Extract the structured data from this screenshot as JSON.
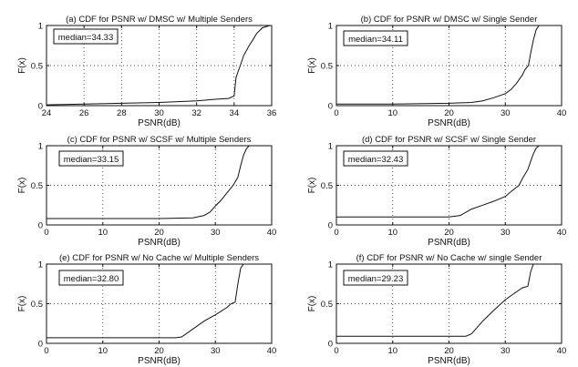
{
  "chart_data": [
    {
      "type": "line",
      "title": "(a) CDF for PSNR w/ DMSC w/ Multiple Senders",
      "xlabel": "PSNR(dB)",
      "ylabel": "F(x)",
      "xlim": [
        24,
        36
      ],
      "ylim": [
        0,
        1
      ],
      "xticks": [
        24,
        26,
        28,
        30,
        32,
        34,
        36
      ],
      "yticks": [
        0,
        0.5,
        1
      ],
      "xtick_labels": [
        "24",
        "26",
        "28",
        "30",
        "32",
        "34",
        "36"
      ],
      "ytick_labels": [
        "0",
        "0.5",
        "1"
      ],
      "grid": true,
      "annotation": "median=34.33",
      "series": [
        {
          "x": [
            24,
            26,
            28,
            30,
            31,
            32,
            33,
            33.7,
            34.0,
            34.1,
            34.2,
            34.33,
            34.5,
            34.8,
            35.0,
            35.2,
            35.5,
            35.9
          ],
          "y": [
            0.01,
            0.02,
            0.03,
            0.04,
            0.05,
            0.06,
            0.08,
            0.09,
            0.12,
            0.35,
            0.42,
            0.5,
            0.62,
            0.75,
            0.82,
            0.9,
            0.97,
            1.0
          ]
        }
      ]
    },
    {
      "type": "line",
      "title": "(b) CDF for PSNR w/ DMSC w/ Single Sender",
      "xlabel": "PSNR(dB)",
      "ylabel": "F(x)",
      "xlim": [
        0,
        40
      ],
      "ylim": [
        0,
        1
      ],
      "xticks": [
        0,
        10,
        20,
        30,
        40
      ],
      "yticks": [
        0,
        0.5,
        1
      ],
      "xtick_labels": [
        "0",
        "10",
        "20",
        "30",
        "40"
      ],
      "ytick_labels": [
        "0",
        "0.5",
        "1"
      ],
      "grid": true,
      "annotation": "median=34.11",
      "series": [
        {
          "x": [
            0,
            10,
            20,
            24,
            26,
            28,
            30,
            31,
            32,
            33,
            33.5,
            34.11,
            34.5,
            35,
            35.5,
            36
          ],
          "y": [
            0.02,
            0.02,
            0.03,
            0.04,
            0.06,
            0.1,
            0.15,
            0.2,
            0.28,
            0.38,
            0.45,
            0.5,
            0.65,
            0.82,
            0.95,
            1.0
          ]
        }
      ]
    },
    {
      "type": "line",
      "title": "(c) CDF for PSNR w/ SCSF w/ Multiple Senders",
      "xlabel": "PSNR(dB)",
      "ylabel": "F(x)",
      "xlim": [
        0,
        40
      ],
      "ylim": [
        0,
        1
      ],
      "xticks": [
        0,
        10,
        20,
        30,
        40
      ],
      "yticks": [
        0,
        0.5,
        1
      ],
      "xtick_labels": [
        "0",
        "10",
        "20",
        "30",
        "40"
      ],
      "ytick_labels": [
        "0",
        "0.5",
        "1"
      ],
      "grid": true,
      "annotation": "median=33.15",
      "series": [
        {
          "x": [
            0,
            10,
            20,
            26,
            28,
            29,
            30,
            31,
            32,
            33.15,
            34,
            34.5,
            35,
            35.5,
            36
          ],
          "y": [
            0.08,
            0.08,
            0.08,
            0.09,
            0.12,
            0.16,
            0.24,
            0.31,
            0.4,
            0.5,
            0.6,
            0.75,
            0.88,
            0.96,
            1.0
          ]
        }
      ]
    },
    {
      "type": "line",
      "title": "(d) CDF for PSNR w/ SCSF w/ Single Sender",
      "xlabel": "PSNR(dB)",
      "ylabel": "F(x)",
      "xlim": [
        0,
        40
      ],
      "ylim": [
        0,
        1
      ],
      "xticks": [
        0,
        10,
        20,
        30,
        40
      ],
      "yticks": [
        0,
        0.5,
        1
      ],
      "xtick_labels": [
        "0",
        "10",
        "20",
        "30",
        "40"
      ],
      "ytick_labels": [
        "0",
        "0.5",
        "1"
      ],
      "grid": true,
      "annotation": "median=32.43",
      "series": [
        {
          "x": [
            0,
            10,
            20,
            22,
            24,
            26,
            28,
            30,
            31,
            32.43,
            33,
            34,
            34.5,
            35,
            35.5,
            36
          ],
          "y": [
            0.1,
            0.1,
            0.1,
            0.12,
            0.2,
            0.25,
            0.3,
            0.36,
            0.42,
            0.5,
            0.58,
            0.7,
            0.8,
            0.9,
            0.97,
            1.0
          ]
        }
      ]
    },
    {
      "type": "line",
      "title": "(e) CDF for PSNR w/ No Cache w/ Multiple Senders",
      "xlabel": "PSNR(dB)",
      "ylabel": "F(x)",
      "xlim": [
        0,
        40
      ],
      "ylim": [
        0,
        1
      ],
      "xticks": [
        0,
        10,
        20,
        30,
        40
      ],
      "yticks": [
        0,
        0.5,
        1
      ],
      "xtick_labels": [
        "0",
        "10",
        "20",
        "30",
        "40"
      ],
      "ytick_labels": [
        "0",
        "0.5",
        "1"
      ],
      "grid": true,
      "annotation": "median=32.80",
      "series": [
        {
          "x": [
            0,
            10,
            20,
            23,
            24,
            26,
            28,
            30,
            32,
            32.8,
            33.5,
            34,
            34.5,
            35
          ],
          "y": [
            0.07,
            0.07,
            0.07,
            0.07,
            0.08,
            0.18,
            0.28,
            0.36,
            0.45,
            0.5,
            0.52,
            0.75,
            0.95,
            1.0
          ]
        }
      ]
    },
    {
      "type": "line",
      "title": "(f) CDF for PSNR w/ No Cache w/ single Sender",
      "xlabel": "PSNR(dB)",
      "ylabel": "F(x)",
      "xlim": [
        0,
        40
      ],
      "ylim": [
        0,
        1
      ],
      "xticks": [
        0,
        10,
        20,
        30,
        40
      ],
      "yticks": [
        0,
        0.5,
        1
      ],
      "xtick_labels": [
        "0",
        "10",
        "20",
        "30",
        "40"
      ],
      "ytick_labels": [
        "0",
        "0.5",
        "1"
      ],
      "grid": true,
      "annotation": "median=29.23",
      "series": [
        {
          "x": [
            0,
            10,
            20,
            23,
            24,
            26,
            28,
            29.23,
            30,
            32,
            33,
            34,
            34.5,
            35
          ],
          "y": [
            0.09,
            0.09,
            0.09,
            0.09,
            0.12,
            0.28,
            0.42,
            0.5,
            0.55,
            0.65,
            0.7,
            0.72,
            0.9,
            1.0
          ]
        }
      ]
    }
  ]
}
